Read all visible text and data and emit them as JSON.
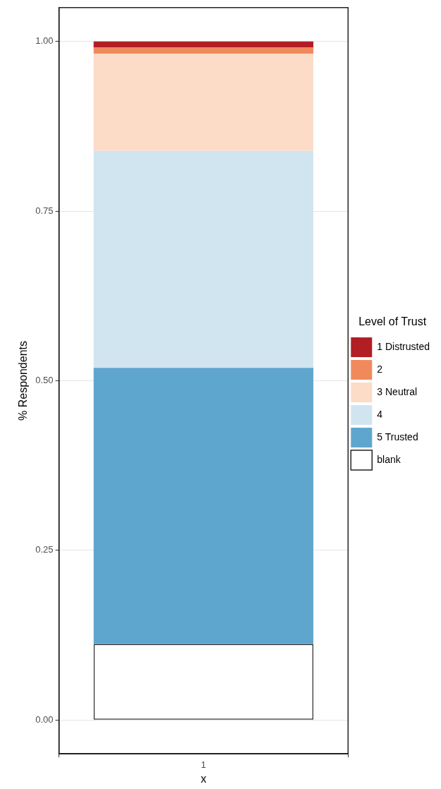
{
  "chart_data": {
    "type": "bar",
    "stacked": true,
    "categories": [
      "1"
    ],
    "xlabel": "x",
    "ylabel": "% Respondents",
    "legend_title": "Level of Trust",
    "legend": "right",
    "grid": true,
    "ylim": [
      -0.05,
      1.05
    ],
    "yticks": [
      {
        "value": 0,
        "label": "0.00"
      },
      {
        "value": 0.25,
        "label": "0.25"
      },
      {
        "value": 0.5,
        "label": "0.50"
      },
      {
        "value": 0.75,
        "label": "0.75"
      },
      {
        "value": 1,
        "label": "1.00"
      }
    ],
    "series": [
      {
        "name": "blank",
        "color": "#ffffff",
        "values": [
          0.112
        ]
      },
      {
        "name": "5 Trusted",
        "color": "#5fa6ce",
        "values": [
          0.407
        ]
      },
      {
        "name": "4",
        "color": "#d1e5f0",
        "values": [
          0.32
        ]
      },
      {
        "name": "3 Neutral",
        "color": "#fcdbc7",
        "values": [
          0.143
        ]
      },
      {
        "name": "2",
        "color": "#f08a5c",
        "values": [
          0.009
        ]
      },
      {
        "name": "1 Distrusted",
        "color": "#b11e24",
        "values": [
          0.009
        ]
      }
    ]
  }
}
